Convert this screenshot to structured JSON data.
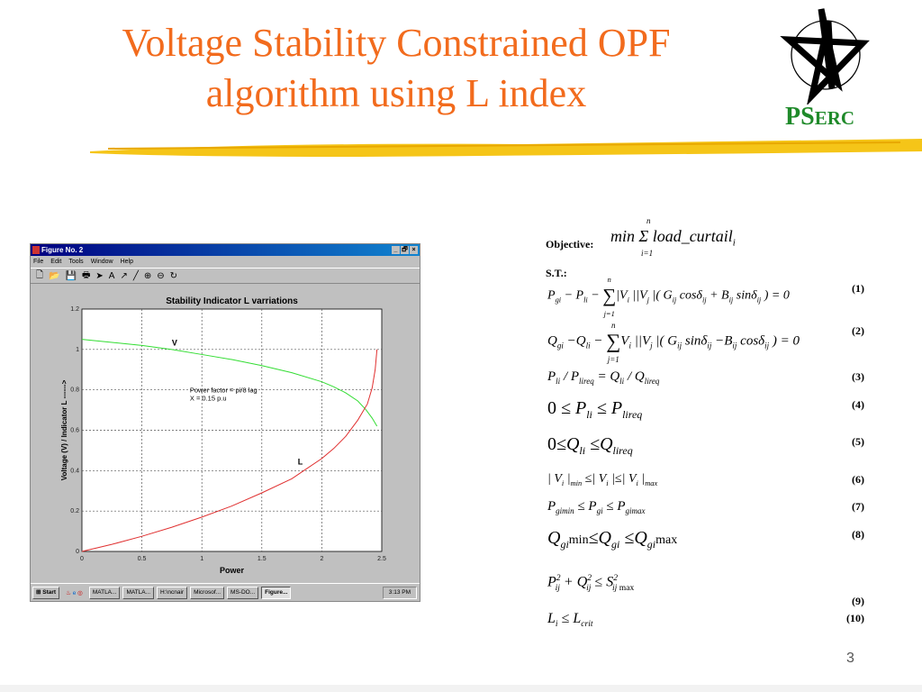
{
  "slide": {
    "title_line1": "Voltage Stability Constrained OPF",
    "title_line2": "algorithm using L index",
    "page_number": "3",
    "logo_text_big": "PS",
    "logo_text_small": "ERC"
  },
  "window": {
    "title": "Figure No. 2",
    "controls": [
      "_",
      "🗗",
      "×"
    ],
    "menu": [
      "File",
      "Edit",
      "Tools",
      "Window",
      "Help"
    ],
    "toolbar": [
      "new-icon",
      "open-icon",
      "save-icon",
      "print-icon",
      "pointer-icon",
      "text-icon",
      "arrow-icon",
      "line-icon",
      "zoom-in-icon",
      "zoom-out-icon",
      "rotate-icon"
    ],
    "taskbar": {
      "start": "Start",
      "items": [
        "MATLA...",
        "MATLA...",
        "H:\\ncnair",
        "Microsof...",
        "MS-DO...",
        "Figure..."
      ],
      "clock": "3:13 PM"
    }
  },
  "chart_data": {
    "type": "line",
    "title": "Stability Indicator L  varriations",
    "xlabel": "Power",
    "ylabel": "Voltage (V)  /  Indicator L ------>",
    "xlim": [
      0,
      2.5
    ],
    "ylim": [
      0,
      1.2
    ],
    "xticks": [
      "0",
      "0.5",
      "1",
      "1.5",
      "2",
      "2.5"
    ],
    "yticks": [
      "0",
      "0.2",
      "0.4",
      "0.6",
      "0.8",
      "1",
      "1.2"
    ],
    "grid": true,
    "annotations": [
      "Power factor = pi/8 lag",
      "X = 0.15 p.u"
    ],
    "series": [
      {
        "name": "V",
        "color": "#33dd33",
        "x": [
          0,
          0.25,
          0.5,
          0.75,
          1.0,
          1.25,
          1.5,
          1.75,
          2.0,
          2.1,
          2.2,
          2.3,
          2.37,
          2.42,
          2.46
        ],
        "y": [
          1.05,
          1.035,
          1.02,
          1.0,
          0.975,
          0.95,
          0.92,
          0.885,
          0.84,
          0.815,
          0.785,
          0.745,
          0.7,
          0.66,
          0.62
        ]
      },
      {
        "name": "L",
        "color": "#e03030",
        "x": [
          0,
          0.25,
          0.5,
          0.75,
          1.0,
          1.25,
          1.5,
          1.75,
          1.85,
          2.0,
          2.1,
          2.2,
          2.3,
          2.38,
          2.42,
          2.445,
          2.46
        ],
        "y": [
          0,
          0.035,
          0.075,
          0.12,
          0.17,
          0.225,
          0.29,
          0.36,
          0.4,
          0.46,
          0.51,
          0.57,
          0.65,
          0.73,
          0.81,
          0.9,
          1.0
        ]
      }
    ]
  },
  "equations": {
    "objective_label": "Objective:",
    "objective": "min Σ load_curtail",
    "st_label": "S.T.:",
    "numbers": [
      "(1)",
      "(2)",
      "(3)",
      "(4)",
      "(5)",
      "(6)",
      "(7)",
      "(8)",
      "(9)",
      "(10)"
    ]
  }
}
